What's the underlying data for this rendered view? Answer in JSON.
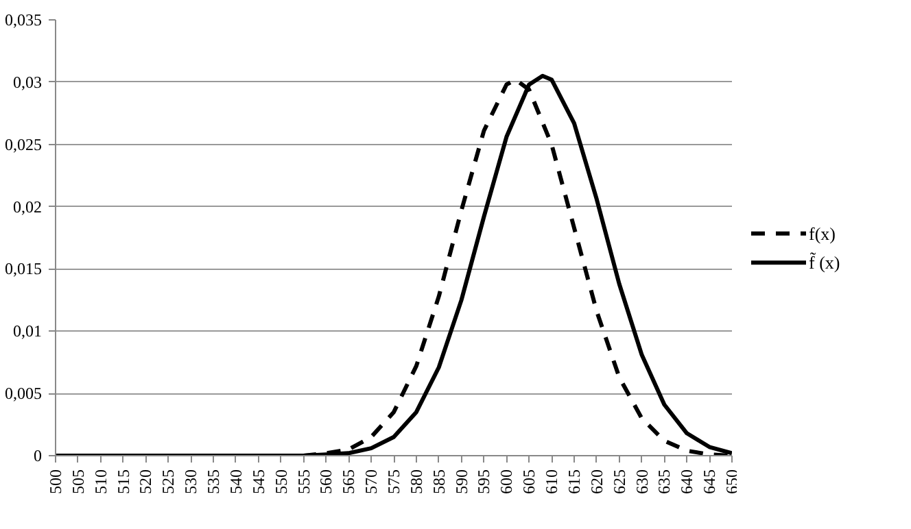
{
  "chart_data": {
    "type": "line",
    "xlim": [
      500,
      650
    ],
    "ylim": [
      0,
      0.035
    ],
    "xticks": [
      500,
      505,
      510,
      515,
      520,
      525,
      530,
      535,
      540,
      545,
      550,
      555,
      560,
      565,
      570,
      575,
      580,
      585,
      590,
      595,
      600,
      605,
      610,
      615,
      620,
      625,
      630,
      635,
      640,
      645,
      650
    ],
    "yticks": [
      0,
      {
        "value": 0.005,
        "label": "0,005"
      },
      {
        "value": 0.01,
        "label": "0,01"
      },
      {
        "value": 0.015,
        "label": "0,015"
      },
      {
        "value": 0.02,
        "label": "0,02"
      },
      {
        "value": 0.025,
        "label": "0,025"
      },
      {
        "value": 0.03,
        "label": "0,03"
      },
      {
        "value": 0.035,
        "label": "0,035"
      }
    ],
    "grid": "y",
    "legend": "right",
    "series": [
      {
        "name": "f(x)",
        "color": "#000000",
        "line_style": "dashed",
        "x": [
          500,
          510,
          520,
          530,
          540,
          550,
          555,
          560,
          565,
          570,
          575,
          580,
          585,
          590,
          595,
          600,
          602,
          605,
          610,
          615,
          620,
          625,
          630,
          635,
          640,
          645,
          650
        ],
        "values": [
          0,
          0,
          0,
          0,
          0,
          0,
          0,
          0.0002,
          0.0005,
          0.0015,
          0.0035,
          0.0072,
          0.0128,
          0.0197,
          0.0261,
          0.0298,
          0.0302,
          0.0294,
          0.025,
          0.0183,
          0.0116,
          0.0063,
          0.003,
          0.0012,
          0.0004,
          0.0001,
          0
        ]
      },
      {
        "name": "f̃ (x)",
        "color": "#000000",
        "line_style": "solid",
        "x": [
          500,
          510,
          520,
          530,
          540,
          550,
          555,
          560,
          565,
          570,
          575,
          580,
          585,
          590,
          595,
          600,
          605,
          608,
          610,
          615,
          620,
          625,
          630,
          635,
          640,
          645,
          650
        ],
        "values": [
          0,
          0,
          0,
          0,
          0,
          0,
          0,
          0.0001,
          0.0002,
          0.0006,
          0.0015,
          0.0035,
          0.0071,
          0.0125,
          0.0192,
          0.0256,
          0.0298,
          0.0305,
          0.0302,
          0.0267,
          0.0206,
          0.0138,
          0.0081,
          0.0041,
          0.0018,
          0.0007,
          0.0002
        ]
      }
    ]
  }
}
